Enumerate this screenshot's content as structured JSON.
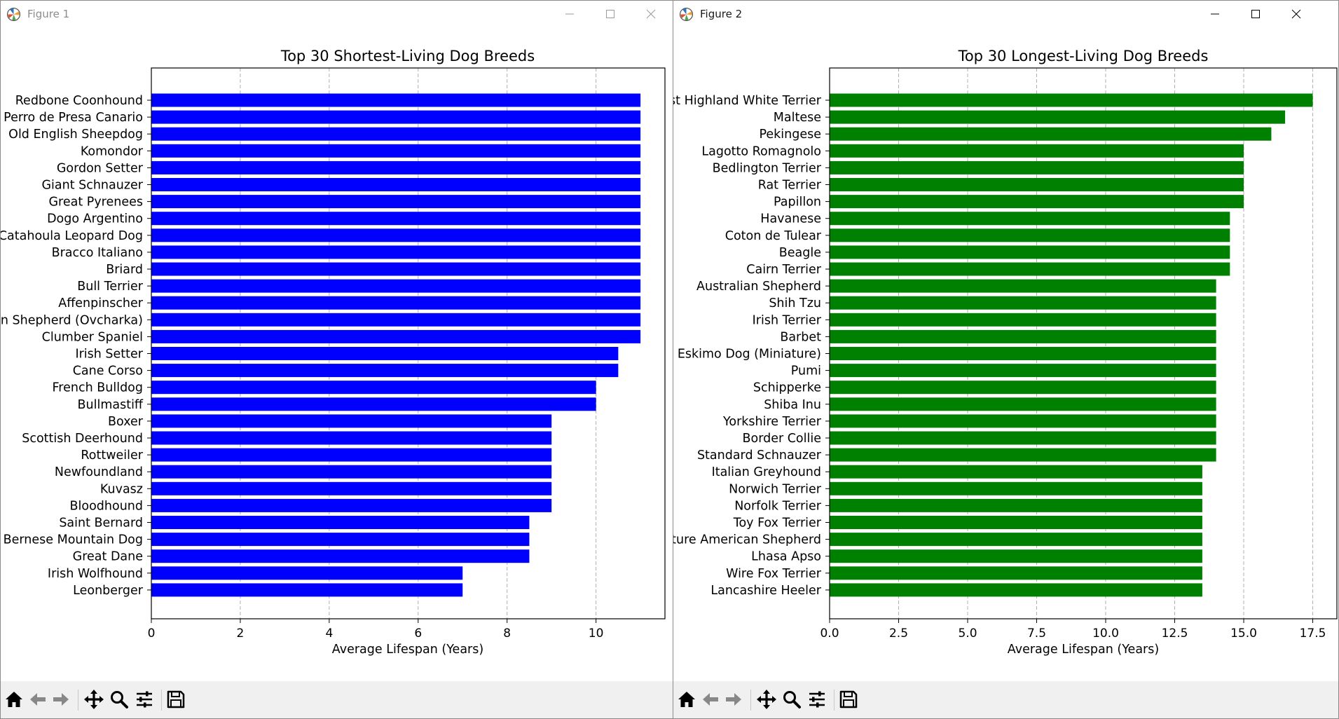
{
  "windows": [
    {
      "title": "Figure 1",
      "chart_data": {
        "type": "bar",
        "orientation": "horizontal",
        "title": "Top 30 Shortest-Living Dog Breeds",
        "xlabel": "Average Lifespan (Years)",
        "ylabel": "",
        "xlim": [
          0,
          11.55
        ],
        "xticks": [
          0,
          2,
          4,
          6,
          8,
          10
        ],
        "tick_labels": [
          "0",
          "2",
          "4",
          "6",
          "8",
          "10"
        ],
        "grid": "x, dashed",
        "color": "#0000ff",
        "categories": [
          "Redbone Coonhound",
          "Perro de Presa Canario",
          "Old English Sheepdog",
          "Komondor",
          "Gordon Setter",
          "Giant Schnauzer",
          "Great Pyrenees",
          "Dogo Argentino",
          "Catahoula Leopard Dog",
          "Bracco Italiano",
          "Briard",
          "Bull Terrier",
          "Affenpinscher",
          "n Shepherd (Ovcharka)",
          "Clumber Spaniel",
          "Irish Setter",
          "Cane Corso",
          "French Bulldog",
          "Bullmastiff",
          "Boxer",
          "Scottish Deerhound",
          "Rottweiler",
          "Newfoundland",
          "Kuvasz",
          "Bloodhound",
          "Saint Bernard",
          "Bernese Mountain Dog",
          "Great Dane",
          "Irish Wolfhound",
          "Leonberger"
        ],
        "values": [
          11,
          11,
          11,
          11,
          11,
          11,
          11,
          11,
          11,
          11,
          11,
          11,
          11,
          11,
          11,
          10.5,
          10.5,
          10,
          10,
          9,
          9,
          9,
          9,
          9,
          9,
          8.5,
          8.5,
          8.5,
          7,
          7
        ]
      }
    },
    {
      "title": "Figure 2",
      "chart_data": {
        "type": "bar",
        "orientation": "horizontal",
        "title": "Top 30 Longest-Living Dog Breeds",
        "xlabel": "Average Lifespan (Years)",
        "ylabel": "",
        "xlim": [
          0,
          18.375
        ],
        "xticks": [
          0,
          2.5,
          5,
          7.5,
          10,
          12.5,
          15,
          17.5
        ],
        "tick_labels": [
          "0.0",
          "2.5",
          "5.0",
          "7.5",
          "10.0",
          "12.5",
          "15.0",
          "17.5"
        ],
        "grid": "x, dashed",
        "color": "#008000",
        "categories": [
          "st Highland White Terrier",
          "Maltese",
          "Pekingese",
          "Lagotto Romagnolo",
          "Bedlington Terrier",
          "Rat Terrier",
          "Papillon",
          "Havanese",
          "Coton de Tulear",
          "Beagle",
          "Cairn Terrier",
          "Australian Shepherd",
          "Shih Tzu",
          "Irish Terrier",
          "Barbet",
          "Eskimo Dog (Miniature)",
          "Pumi",
          "Schipperke",
          "Shiba Inu",
          "Yorkshire Terrier",
          "Border Collie",
          "Standard Schnauzer",
          "Italian Greyhound",
          "Norwich Terrier",
          "Norfolk Terrier",
          "Toy Fox Terrier",
          "ture American Shepherd",
          "Lhasa Apso",
          "Wire Fox Terrier",
          "Lancashire Heeler"
        ],
        "values": [
          17.5,
          16.5,
          16,
          15,
          15,
          15,
          15,
          14.5,
          14.5,
          14.5,
          14.5,
          14,
          14,
          14,
          14,
          14,
          14,
          14,
          14,
          14,
          14,
          14,
          13.5,
          13.5,
          13.5,
          13.5,
          13.5,
          13.5,
          13.5,
          13.5
        ]
      }
    }
  ],
  "toolbar_icons": [
    "home-icon",
    "back-arrow-icon",
    "forward-arrow-icon",
    "pan-move-icon",
    "zoom-magnifier-icon",
    "configure-subplots-icon",
    "save-floppy-icon"
  ]
}
